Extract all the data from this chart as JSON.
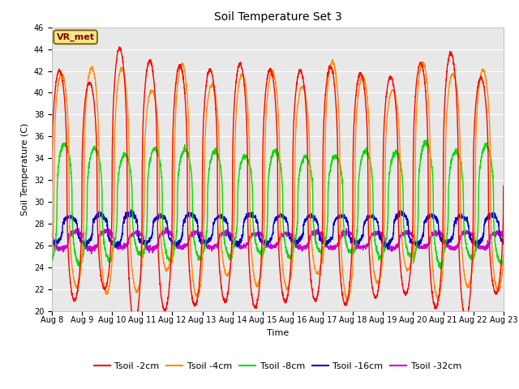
{
  "title": "Soil Temperature Set 3",
  "xlabel": "Time",
  "ylabel": "Soil Temperature (C)",
  "ylim": [
    20,
    46
  ],
  "yticks": [
    20,
    22,
    24,
    26,
    28,
    30,
    32,
    34,
    36,
    38,
    40,
    42,
    44,
    46
  ],
  "bg_color": "#e8e8e8",
  "legend_label": "VR_met",
  "legend_box_color": "#f5e88a",
  "legend_box_border": "#8b6914",
  "series_names": [
    "Tsoil -2cm",
    "Tsoil -4cm",
    "Tsoil -8cm",
    "Tsoil -16cm",
    "Tsoil -32cm"
  ],
  "series_colors": [
    "#ff0000",
    "#ff8c00",
    "#00dd00",
    "#0000cc",
    "#cc00cc"
  ],
  "series_depths": [
    2,
    4,
    8,
    16,
    32
  ],
  "series_amplitudes": [
    11.0,
    9.5,
    5.0,
    1.3,
    0.7
  ],
  "series_means": [
    31.5,
    32.0,
    29.8,
    27.5,
    26.5
  ],
  "series_phase_offsets": [
    0.0,
    0.07,
    0.17,
    0.35,
    0.55
  ],
  "start_day": 8,
  "end_day": 23,
  "n_points": 3000,
  "xtick_days": [
    8,
    9,
    10,
    11,
    12,
    13,
    14,
    15,
    16,
    17,
    18,
    19,
    20,
    21,
    22,
    23
  ],
  "xtick_labels": [
    "Aug 8",
    "Aug 9",
    "Aug 10",
    "Aug 11",
    "Aug 12",
    "Aug 13",
    "Aug 14",
    "Aug 15",
    "Aug 16",
    "Aug 17",
    "Aug 18",
    "Aug 19",
    "Aug 20",
    "Aug 21",
    "Aug 22",
    "Aug 23"
  ],
  "peak_power": 2.5,
  "title_fontsize": 10,
  "label_fontsize": 8,
  "tick_fontsize": 7,
  "legend_fontsize": 8
}
